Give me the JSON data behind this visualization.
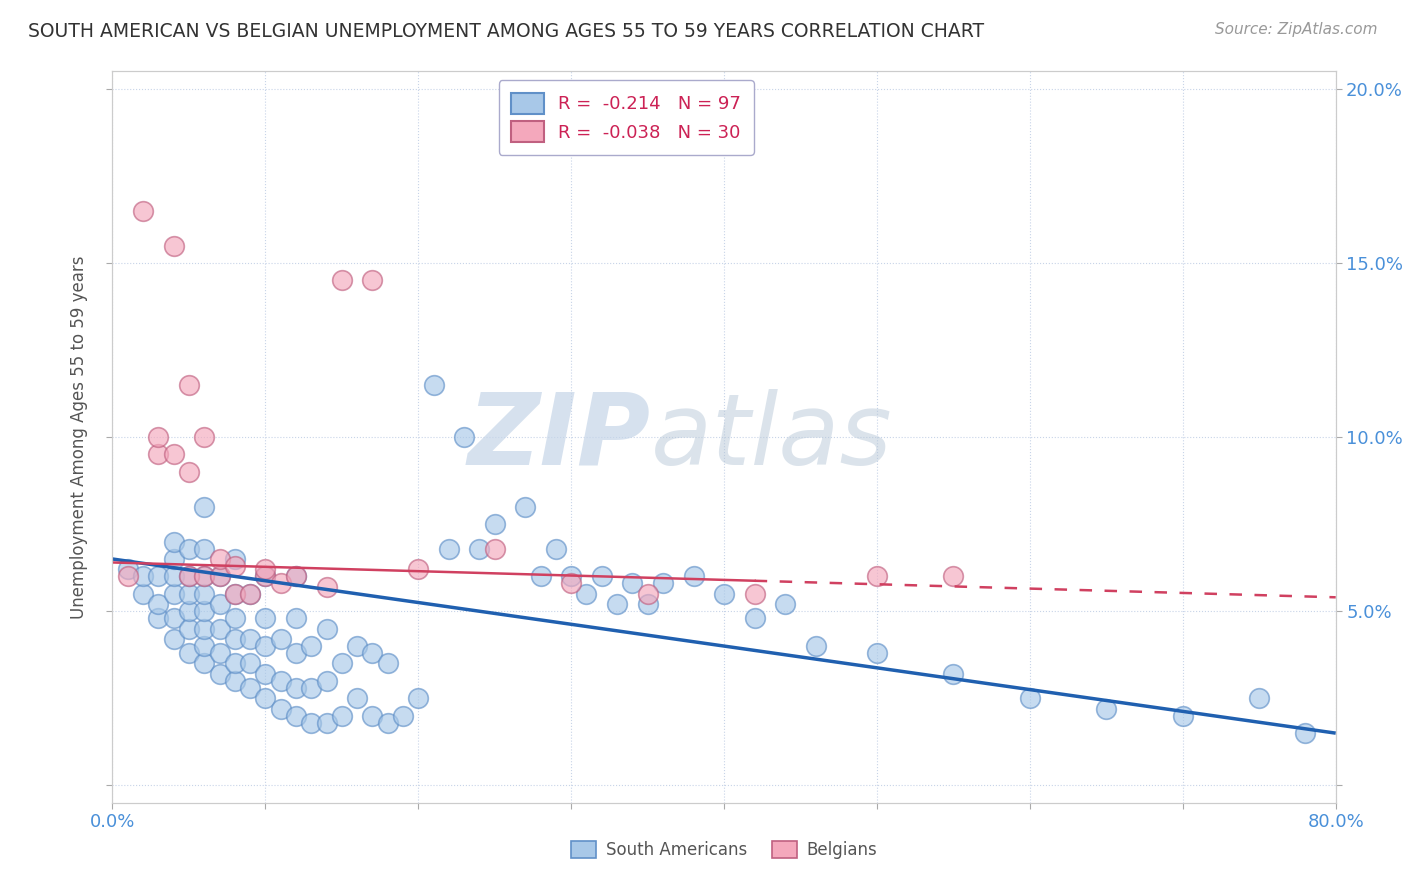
{
  "title": "SOUTH AMERICAN VS BELGIAN UNEMPLOYMENT AMONG AGES 55 TO 59 YEARS CORRELATION CHART",
  "source": "Source: ZipAtlas.com",
  "ylabel": "Unemployment Among Ages 55 to 59 years",
  "xlim": [
    0.0,
    0.8
  ],
  "ylim": [
    -0.005,
    0.205
  ],
  "xticks": [
    0.0,
    0.1,
    0.2,
    0.3,
    0.4,
    0.5,
    0.6,
    0.7,
    0.8
  ],
  "yticks": [
    0.0,
    0.05,
    0.1,
    0.15,
    0.2
  ],
  "right_ylabels": [
    "",
    "5.0%",
    "10.0%",
    "15.0%",
    "20.0%"
  ],
  "left_ylabels": [
    "",
    "",
    "",
    "",
    ""
  ],
  "legend_sa": "R =  -0.214   N = 97",
  "legend_be": "R =  -0.038   N = 30",
  "sa_color": "#a8c8e8",
  "be_color": "#f4a8bc",
  "sa_line_color": "#2060b0",
  "be_line_color": "#d04060",
  "watermark_zip": "ZIP",
  "watermark_atlas": "atlas",
  "sa_trend_x": [
    0.0,
    0.8
  ],
  "sa_trend_y": [
    0.065,
    0.015
  ],
  "be_trend_x": [
    0.0,
    0.8
  ],
  "be_trend_y": [
    0.064,
    0.054
  ],
  "sa_points_x": [
    0.01,
    0.02,
    0.02,
    0.03,
    0.03,
    0.03,
    0.04,
    0.04,
    0.04,
    0.04,
    0.04,
    0.04,
    0.05,
    0.05,
    0.05,
    0.05,
    0.05,
    0.05,
    0.06,
    0.06,
    0.06,
    0.06,
    0.06,
    0.06,
    0.06,
    0.06,
    0.07,
    0.07,
    0.07,
    0.07,
    0.07,
    0.08,
    0.08,
    0.08,
    0.08,
    0.08,
    0.08,
    0.09,
    0.09,
    0.09,
    0.09,
    0.1,
    0.1,
    0.1,
    0.1,
    0.1,
    0.11,
    0.11,
    0.11,
    0.12,
    0.12,
    0.12,
    0.12,
    0.12,
    0.13,
    0.13,
    0.13,
    0.14,
    0.14,
    0.14,
    0.15,
    0.15,
    0.16,
    0.16,
    0.17,
    0.17,
    0.18,
    0.18,
    0.19,
    0.2,
    0.21,
    0.22,
    0.23,
    0.24,
    0.25,
    0.27,
    0.28,
    0.29,
    0.3,
    0.31,
    0.32,
    0.33,
    0.34,
    0.35,
    0.36,
    0.38,
    0.4,
    0.42,
    0.44,
    0.46,
    0.5,
    0.55,
    0.6,
    0.65,
    0.7,
    0.75,
    0.78
  ],
  "sa_points_y": [
    0.062,
    0.055,
    0.06,
    0.048,
    0.052,
    0.06,
    0.042,
    0.048,
    0.055,
    0.06,
    0.065,
    0.07,
    0.038,
    0.045,
    0.05,
    0.055,
    0.06,
    0.068,
    0.035,
    0.04,
    0.045,
    0.05,
    0.055,
    0.06,
    0.068,
    0.08,
    0.032,
    0.038,
    0.045,
    0.052,
    0.06,
    0.03,
    0.035,
    0.042,
    0.048,
    0.055,
    0.065,
    0.028,
    0.035,
    0.042,
    0.055,
    0.025,
    0.032,
    0.04,
    0.048,
    0.06,
    0.022,
    0.03,
    0.042,
    0.02,
    0.028,
    0.038,
    0.048,
    0.06,
    0.018,
    0.028,
    0.04,
    0.018,
    0.03,
    0.045,
    0.02,
    0.035,
    0.025,
    0.04,
    0.02,
    0.038,
    0.018,
    0.035,
    0.02,
    0.025,
    0.115,
    0.068,
    0.1,
    0.068,
    0.075,
    0.08,
    0.06,
    0.068,
    0.06,
    0.055,
    0.06,
    0.052,
    0.058,
    0.052,
    0.058,
    0.06,
    0.055,
    0.048,
    0.052,
    0.04,
    0.038,
    0.032,
    0.025,
    0.022,
    0.02,
    0.025,
    0.015
  ],
  "be_points_x": [
    0.01,
    0.02,
    0.03,
    0.03,
    0.04,
    0.04,
    0.05,
    0.05,
    0.05,
    0.06,
    0.06,
    0.07,
    0.07,
    0.08,
    0.08,
    0.09,
    0.1,
    0.1,
    0.11,
    0.12,
    0.14,
    0.15,
    0.17,
    0.2,
    0.25,
    0.3,
    0.35,
    0.42,
    0.5,
    0.55
  ],
  "be_points_y": [
    0.06,
    0.165,
    0.095,
    0.1,
    0.095,
    0.155,
    0.06,
    0.09,
    0.115,
    0.06,
    0.1,
    0.06,
    0.065,
    0.055,
    0.063,
    0.055,
    0.06,
    0.062,
    0.058,
    0.06,
    0.057,
    0.145,
    0.145,
    0.062,
    0.068,
    0.058,
    0.055,
    0.055,
    0.06,
    0.06
  ]
}
